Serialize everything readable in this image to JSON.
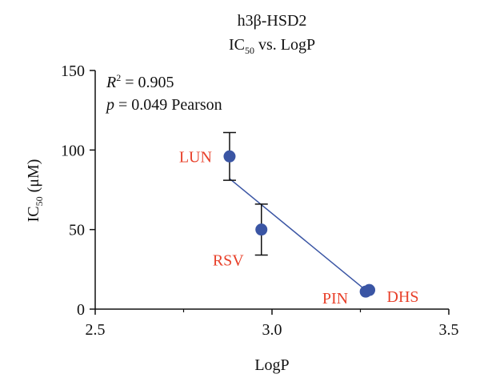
{
  "chart_data": {
    "type": "scatter",
    "title_line1": "h3β-HSD2",
    "title_ic": "IC",
    "title_sub": "50",
    "title_rest": " vs. LogP",
    "xlabel": "LogP",
    "ylabel_ic": "IC",
    "ylabel_sub": "50",
    "ylabel_rest": " (μM)",
    "xlim": [
      2.5,
      3.5
    ],
    "ylim": [
      0,
      150
    ],
    "x_ticks": [
      2.5,
      3.0,
      3.5
    ],
    "x_tick_labels": [
      "2.5",
      "3.0",
      "3.5"
    ],
    "y_ticks": [
      0,
      50,
      100,
      150
    ],
    "y_tick_labels": [
      "0",
      "50",
      "100",
      "150"
    ],
    "stats": {
      "r2_label": "R",
      "r2_sup": "2",
      "r2_value": " = 0.905",
      "p_label": "p",
      "p_value": " = 0.049 Pearson"
    },
    "points": [
      {
        "label": "LUN",
        "x": 2.88,
        "y": 96,
        "err": 15,
        "label_side": "left"
      },
      {
        "label": "RSV",
        "x": 2.97,
        "y": 50,
        "err": 16,
        "label_side": "left-below"
      },
      {
        "label": "PIN",
        "x": 3.265,
        "y": 11,
        "err": 0,
        "label_side": "left"
      },
      {
        "label": "DHS",
        "x": 3.275,
        "y": 12,
        "err": 0,
        "label_side": "right"
      }
    ],
    "fit_line": {
      "x": [
        2.88,
        3.27
      ],
      "y": [
        82,
        11
      ]
    },
    "colors": {
      "point": "#3a55a4",
      "line": "#3a55a4",
      "label": "#e8402a",
      "axis": "#111111"
    },
    "grid": false
  }
}
